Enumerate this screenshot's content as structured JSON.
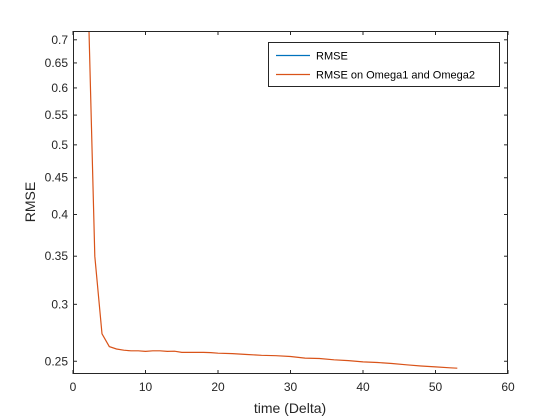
{
  "chart_data": {
    "type": "line",
    "xlabel": "time (Delta)",
    "ylabel": "RMSE",
    "xlim": [
      0,
      60
    ],
    "ylim": [
      0.24,
      0.72
    ],
    "yscale": "log",
    "xticks": [
      "0",
      "10",
      "20",
      "30",
      "40",
      "50",
      "60"
    ],
    "yticks": [
      "0.25",
      "0.3",
      "0.35",
      "0.4",
      "0.45",
      "0.5",
      "0.55",
      "0.6",
      "0.65",
      "0.7"
    ],
    "grid": false,
    "box": true,
    "legend": {
      "position": "top-right"
    },
    "series": [
      {
        "name": "RMSE",
        "color": "#0072BD",
        "x": [],
        "y": []
      },
      {
        "name": "RMSE on Omega1 and Omega2",
        "color": "#D95319",
        "x": [
          2.2,
          3,
          4,
          5,
          6,
          7,
          8,
          9,
          10,
          11,
          12,
          13,
          14,
          15,
          16,
          17,
          18,
          19,
          20,
          22,
          24,
          26,
          28,
          30,
          32,
          34,
          36,
          38,
          40,
          42,
          44,
          46,
          48,
          50,
          52,
          53
        ],
        "y": [
          0.72,
          0.35,
          0.273,
          0.262,
          0.26,
          0.259,
          0.2585,
          0.2585,
          0.258,
          0.2585,
          0.2585,
          0.258,
          0.2582,
          0.2572,
          0.2572,
          0.2572,
          0.2572,
          0.257,
          0.2565,
          0.2562,
          0.2555,
          0.2548,
          0.2545,
          0.2538,
          0.2525,
          0.2522,
          0.2512,
          0.2505,
          0.2495,
          0.249,
          0.2482,
          0.2472,
          0.2462,
          0.2455,
          0.2448,
          0.2445
        ]
      }
    ]
  }
}
